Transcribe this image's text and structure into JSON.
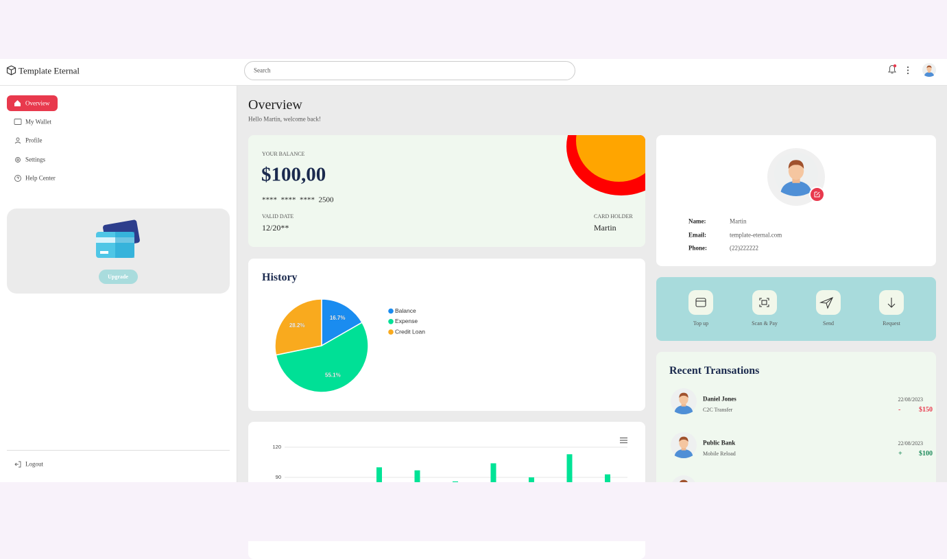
{
  "header": {
    "brand": "Template Eternal",
    "search_placeholder": "Search"
  },
  "sidebar": {
    "menu": [
      "Overview",
      "My Wallet",
      "Profile",
      "Settings",
      "Help Center"
    ],
    "upgrade": "Upgrade",
    "logout": "Logout"
  },
  "page": {
    "title": "Overview",
    "subtitle": "Hello Martin, welcome back!"
  },
  "balance_card": {
    "label": "YOUR BALANCE",
    "amount": "$100,00",
    "card_number": "****  ****  ****  2500",
    "valid_label": "VALID DATE",
    "valid_value": "12/20**",
    "holder_label": "CARD HOLDER",
    "holder_value": "Martin"
  },
  "profile": {
    "fields": [
      {
        "label": "Name:",
        "value": "Martin"
      },
      {
        "label": "Email:",
        "value": "template-eternal.com"
      },
      {
        "label": "Phone:",
        "value": "(22)222222"
      }
    ]
  },
  "actions": [
    "Top up",
    "Scan & Pay",
    "Send",
    "Request"
  ],
  "history": {
    "title": "History",
    "chart_data": {
      "type": "pie",
      "categories": [
        "Balance",
        "Expense",
        "Credit Loan"
      ],
      "values": [
        16.7,
        55.1,
        28.2
      ],
      "value_labels": [
        "16.7%",
        "55.1%",
        "28.2%"
      ],
      "colors": [
        "#1a8cf0",
        "#00e096",
        "#f9aa1e"
      ]
    }
  },
  "activity": {
    "chart_data": {
      "type": "bar",
      "categories": [
        null,
        null,
        null,
        null,
        null,
        null,
        null
      ],
      "values": [
        100,
        97,
        86,
        104,
        90,
        113,
        93
      ],
      "color": "#00e396",
      "ylim": [
        0,
        120
      ],
      "yticks": [
        90,
        120
      ],
      "grid": true
    }
  },
  "transactions": {
    "title": "Recent Transations",
    "items": [
      {
        "name": "Daniel Jones",
        "note": "C2C Transfer",
        "date": "22/08/2023",
        "sign": "-",
        "amount": "$150",
        "color": "#e8394d"
      },
      {
        "name": "Public Bank",
        "note": "Mobile Reload",
        "date": "22/08/2023",
        "sign": "+",
        "amount": "$100",
        "color": "#1d8a5a"
      }
    ]
  }
}
